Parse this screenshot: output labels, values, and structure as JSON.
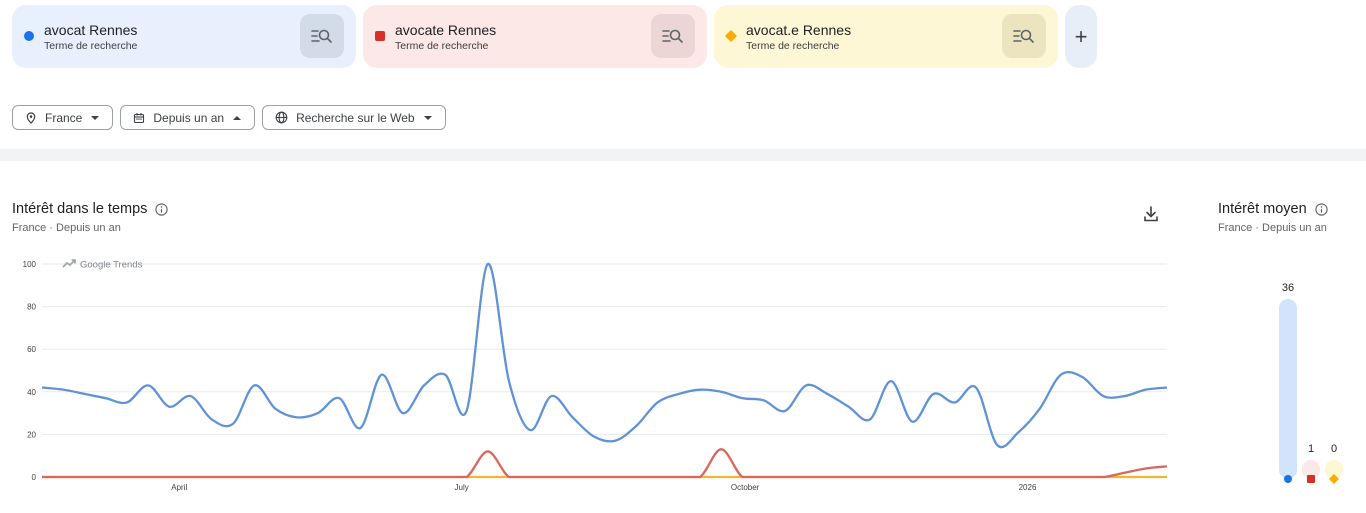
{
  "terms": [
    {
      "label": "avocat Rennes",
      "sublabel": "Terme de recherche",
      "color": "#1a73e8",
      "bg": "#e8f0fe",
      "btn_bg": "#d2dbe8",
      "marker": "circle"
    },
    {
      "label": "avocate Rennes",
      "sublabel": "Terme de recherche",
      "color": "#d93025",
      "bg": "#fce8e6",
      "btn_bg": "#ecd6d5",
      "marker": "square"
    },
    {
      "label": "avocat.e Rennes",
      "sublabel": "Terme de recherche",
      "color": "#f9ab00",
      "bg": "#fef7d5",
      "btn_bg": "#ece3bf",
      "marker": "diamond"
    }
  ],
  "add_label": "+",
  "filters": {
    "region": "France",
    "period": "Depuis un an",
    "search_type": "Recherche sur le Web"
  },
  "interest_time": {
    "title": "Intérêt dans le temps",
    "subtitle": "France · Depuis un an",
    "watermark": "Google Trends"
  },
  "interest_avg": {
    "title": "Intérêt moyen",
    "subtitle": "France · Depuis un an"
  },
  "chart_data": [
    {
      "type": "line",
      "title": "Intérêt dans le temps",
      "ylim": [
        0,
        100
      ],
      "yticks": [
        0,
        20,
        40,
        60,
        80,
        100
      ],
      "xtick_labels": [
        "April",
        "July",
        "October",
        "2026"
      ],
      "grid": true,
      "series": [
        {
          "name": "avocat Rennes",
          "color": "#5f93d6",
          "values": [
            42,
            41,
            39,
            37,
            35,
            43,
            33,
            38,
            27,
            25,
            43,
            32,
            28,
            30,
            37,
            23,
            48,
            30,
            43,
            48,
            31,
            100,
            45,
            22,
            38,
            28,
            19,
            17,
            24,
            35,
            39,
            41,
            40,
            37,
            36,
            31,
            43,
            39,
            33,
            27,
            45,
            26,
            39,
            35,
            42,
            15,
            21,
            32,
            48,
            47,
            38,
            38,
            41,
            42
          ]
        },
        {
          "name": "avocate Rennes",
          "color": "#d9675c",
          "values": [
            0,
            0,
            0,
            0,
            0,
            0,
            0,
            0,
            0,
            0,
            0,
            0,
            0,
            0,
            0,
            0,
            0,
            0,
            0,
            0,
            0,
            12,
            0,
            0,
            0,
            0,
            0,
            0,
            0,
            0,
            0,
            0,
            13,
            0,
            0,
            0,
            0,
            0,
            0,
            0,
            0,
            0,
            0,
            0,
            0,
            0,
            0,
            0,
            0,
            0,
            0,
            2,
            4,
            5
          ]
        },
        {
          "name": "avocat.e Rennes",
          "color": "#f2b632",
          "values": [
            0,
            0,
            0,
            0,
            0,
            0,
            0,
            0,
            0,
            0,
            0,
            0,
            0,
            0,
            0,
            0,
            0,
            0,
            0,
            0,
            0,
            0,
            0,
            0,
            0,
            0,
            0,
            0,
            0,
            0,
            0,
            0,
            0,
            0,
            0,
            0,
            0,
            0,
            0,
            0,
            0,
            0,
            0,
            0,
            0,
            0,
            0,
            0,
            0,
            0,
            0,
            0,
            0,
            0
          ]
        }
      ]
    },
    {
      "type": "bar",
      "title": "Intérêt moyen",
      "categories": [
        "avocat Rennes",
        "avocate Rennes",
        "avocat.e Rennes"
      ],
      "values": [
        36,
        1,
        0
      ],
      "value_labels": [
        "36",
        "1",
        "0"
      ],
      "ylim": [
        0,
        36
      ]
    }
  ]
}
